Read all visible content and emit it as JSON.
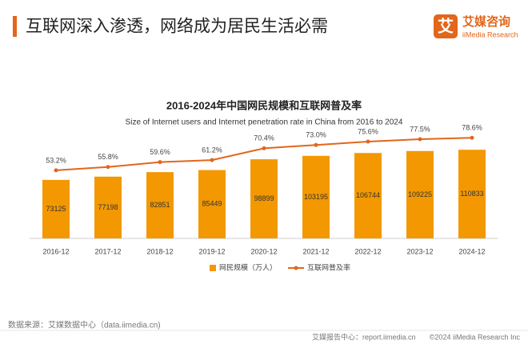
{
  "header": {
    "title": "互联网深入渗透，网络成为居民生活必需",
    "logo_icon": "艾",
    "logo_name": "艾媒咨询",
    "logo_sub": "iiMedia Research"
  },
  "chart_data": {
    "type": "combo",
    "title": "2016-2024年中国网民规模和互联网普及率",
    "subtitle": "Size of Internet users and Internet penetration rate in China from 2016 to 2024",
    "categories": [
      "2016-12",
      "2017-12",
      "2018-12",
      "2019-12",
      "2020-12",
      "2021-12",
      "2022-12",
      "2023-12",
      "2024-12"
    ],
    "series": [
      {
        "name": "网民规模（万人）",
        "type": "bar",
        "color": "#F39800",
        "values": [
          73125,
          77198,
          82851,
          85449,
          98899,
          103195,
          106744,
          109225,
          110833
        ]
      },
      {
        "name": "互联网普及率",
        "type": "line",
        "axis": "y2",
        "color": "#E2661B",
        "values": [
          53.2,
          55.8,
          59.6,
          61.2,
          70.4,
          73.0,
          75.6,
          77.5,
          78.6
        ],
        "value_labels": [
          "53.2%",
          "55.8%",
          "59.6%",
          "61.2%",
          "70.4%",
          "73.0%",
          "75.6%",
          "77.5%",
          "78.6%"
        ]
      }
    ],
    "ylim": [
      0,
      160000
    ],
    "y2lim": [
      0,
      100
    ],
    "legend": "bottom"
  },
  "footer": {
    "source": "数据来源：艾媒数据中心（data.iimedia.cn)",
    "report": "艾媒报告中心：report.iimedia.cn",
    "copyright": "©2024 iiMedia Research Inc"
  }
}
